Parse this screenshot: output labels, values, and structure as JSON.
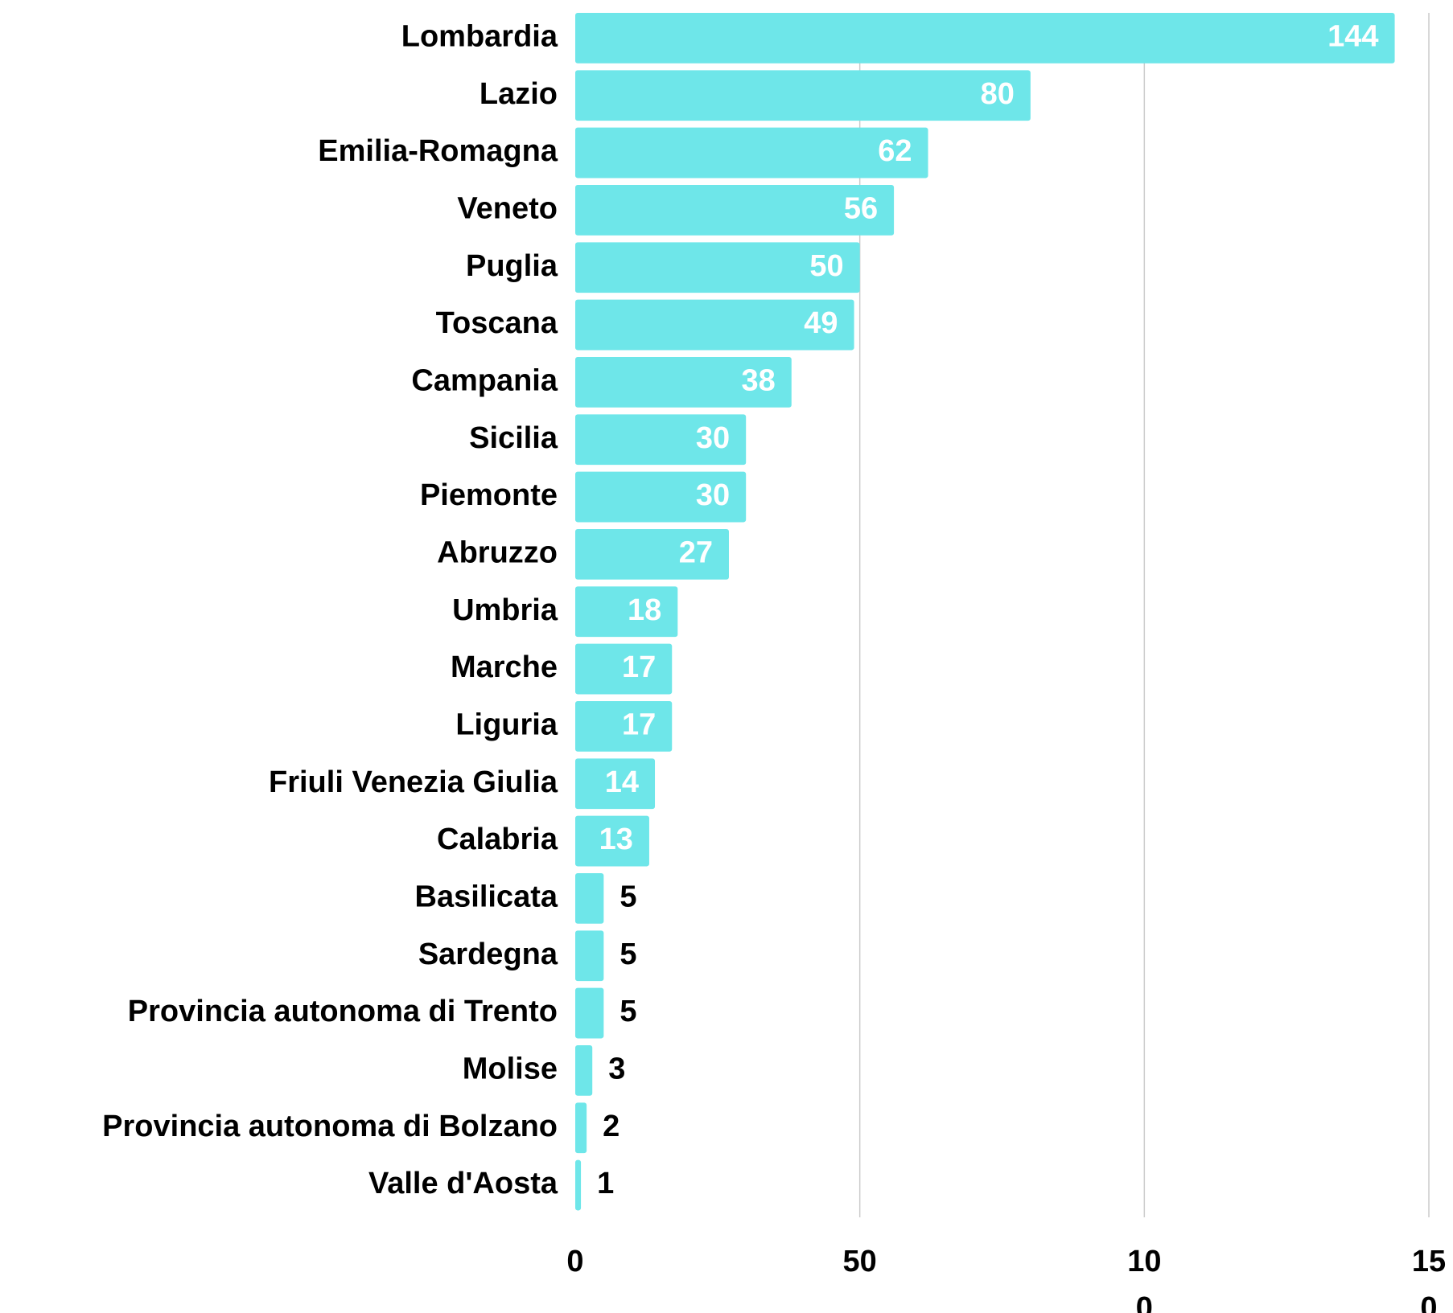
{
  "chart_data": {
    "type": "bar",
    "orientation": "horizontal",
    "categories": [
      "Lombardia",
      "Lazio",
      "Emilia-Romagna",
      "Veneto",
      "Puglia",
      "Toscana",
      "Campania",
      "Sicilia",
      "Piemonte",
      "Abruzzo",
      "Umbria",
      "Marche",
      "Liguria",
      "Friuli Venezia Giulia",
      "Calabria",
      "Basilicata",
      "Sardegna",
      "Provincia autonoma di Trento",
      "Molise",
      "Provincia autonoma di Bolzano",
      "Valle d'Aosta"
    ],
    "values": [
      144,
      80,
      62,
      56,
      50,
      49,
      38,
      30,
      30,
      27,
      18,
      17,
      17,
      14,
      13,
      5,
      5,
      5,
      3,
      2,
      1
    ],
    "color": "#6ee6e9",
    "xlim": [
      0,
      150
    ],
    "xticks": [
      0,
      50,
      100,
      150
    ],
    "grid": true
  }
}
